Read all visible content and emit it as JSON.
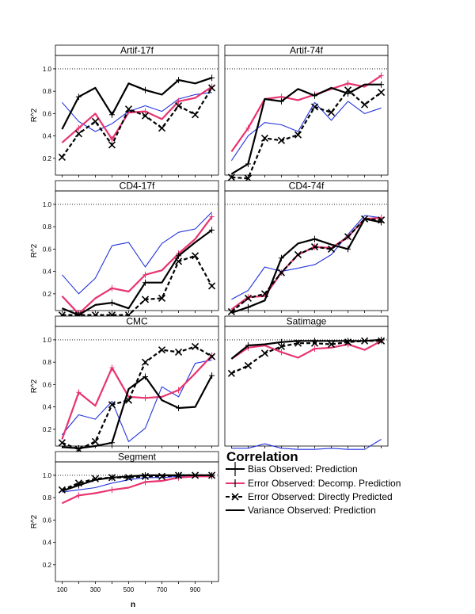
{
  "chart_data": {
    "type": "line",
    "xlabel": "n",
    "ylabel": "R^2",
    "x": [
      100,
      200,
      300,
      400,
      500,
      600,
      700,
      800,
      900,
      1000
    ],
    "x_ticks": [
      "100",
      "300",
      "500",
      "700",
      "900"
    ],
    "y_ticks": [
      "0.2",
      "0.4",
      "0.6",
      "0.8",
      "1.0"
    ],
    "ylim": [
      0.05,
      1.12
    ],
    "reference_line": 1.0,
    "colors": {
      "bias": "#000000",
      "decomp": "#e8336f",
      "direct": "#000000",
      "variance": "#2233dd"
    },
    "legend": {
      "title": "Correlation",
      "items": [
        "Bias Observed: Prediction",
        "Error  Observed: Decomp. Prediction",
        "Error  Observed: Directly Predicted",
        "Variance  Observed: Prediction"
      ]
    },
    "panels": [
      {
        "title": "Artif-17f",
        "series": [
          {
            "name": "Bias",
            "values": [
              0.46,
              0.75,
              0.83,
              0.59,
              0.87,
              0.81,
              0.77,
              0.9,
              0.87,
              0.92
            ]
          },
          {
            "name": "Error Decomp",
            "values": [
              0.34,
              0.47,
              0.6,
              0.37,
              0.61,
              0.62,
              0.55,
              0.71,
              0.74,
              0.84
            ]
          },
          {
            "name": "Error Direct",
            "values": [
              0.21,
              0.42,
              0.53,
              0.32,
              0.64,
              0.58,
              0.47,
              0.67,
              0.59,
              0.83
            ]
          },
          {
            "name": "Variance",
            "values": [
              0.7,
              0.53,
              0.44,
              0.51,
              0.62,
              0.67,
              0.62,
              0.73,
              0.77,
              0.79
            ]
          }
        ]
      },
      {
        "title": "Artif-74f",
        "series": [
          {
            "name": "Bias",
            "values": [
              0.06,
              0.15,
              0.73,
              0.71,
              0.82,
              0.76,
              0.83,
              0.78,
              0.86,
              0.86
            ]
          },
          {
            "name": "Error Decomp",
            "values": [
              0.26,
              0.47,
              0.73,
              0.75,
              0.72,
              0.77,
              0.82,
              0.87,
              0.84,
              0.94
            ]
          },
          {
            "name": "Error Direct",
            "values": [
              0.03,
              0.02,
              0.38,
              0.36,
              0.41,
              0.66,
              0.61,
              0.81,
              0.68,
              0.79
            ]
          },
          {
            "name": "Variance",
            "values": [
              0.18,
              0.4,
              0.52,
              0.5,
              0.44,
              0.7,
              0.54,
              0.71,
              0.6,
              0.65
            ]
          }
        ]
      },
      {
        "title": "CD4-17f",
        "series": [
          {
            "name": "Bias",
            "values": [
              0.07,
              0.01,
              0.1,
              0.12,
              0.07,
              0.3,
              0.3,
              0.54,
              0.66,
              0.77
            ]
          },
          {
            "name": "Error Decomp",
            "values": [
              0.18,
              0.02,
              0.16,
              0.25,
              0.22,
              0.37,
              0.41,
              0.56,
              0.69,
              0.89
            ]
          },
          {
            "name": "Error Direct",
            "values": [
              0.01,
              0.01,
              0.01,
              0.01,
              0.01,
              0.15,
              0.16,
              0.49,
              0.54,
              0.27
            ]
          },
          {
            "name": "Variance",
            "values": [
              0.37,
              0.2,
              0.34,
              0.63,
              0.66,
              0.44,
              0.65,
              0.75,
              0.78,
              0.93
            ]
          }
        ]
      },
      {
        "title": "CD4-74f",
        "series": [
          {
            "name": "Bias",
            "values": [
              0.03,
              0.08,
              0.14,
              0.52,
              0.65,
              0.69,
              0.64,
              0.6,
              0.87,
              0.84
            ]
          },
          {
            "name": "Error Decomp",
            "values": [
              0.06,
              0.17,
              0.18,
              0.39,
              0.55,
              0.62,
              0.61,
              0.71,
              0.87,
              0.88
            ]
          },
          {
            "name": "Error Direct",
            "values": [
              0.04,
              0.16,
              0.2,
              0.39,
              0.55,
              0.62,
              0.6,
              0.71,
              0.87,
              0.86
            ]
          },
          {
            "name": "Variance",
            "values": [
              0.15,
              0.23,
              0.44,
              0.4,
              0.43,
              0.46,
              0.55,
              0.73,
              0.9,
              0.88
            ]
          }
        ]
      },
      {
        "title": "CMC",
        "series": [
          {
            "name": "Bias",
            "values": [
              0.04,
              0.03,
              0.05,
              0.08,
              0.56,
              0.67,
              0.46,
              0.39,
              0.4,
              0.68
            ]
          },
          {
            "name": "Error Decomp",
            "values": [
              0.11,
              0.53,
              0.41,
              0.75,
              0.49,
              0.48,
              0.49,
              0.55,
              0.7,
              0.86
            ]
          },
          {
            "name": "Error Direct",
            "values": [
              0.08,
              0.02,
              0.09,
              0.42,
              0.46,
              0.8,
              0.91,
              0.89,
              0.94,
              0.85
            ]
          },
          {
            "name": "Variance",
            "values": [
              0.15,
              0.33,
              0.29,
              0.45,
              0.09,
              0.21,
              0.58,
              0.49,
              0.79,
              0.82
            ]
          }
        ]
      },
      {
        "title": "Satimage",
        "series": [
          {
            "name": "Bias",
            "values": [
              0.83,
              0.95,
              0.96,
              0.98,
              0.99,
              0.99,
              0.99,
              0.99,
              0.99,
              1.0
            ]
          },
          {
            "name": "Error Decomp",
            "values": [
              0.83,
              0.93,
              0.95,
              0.89,
              0.84,
              0.92,
              0.93,
              0.96,
              0.91,
              0.99
            ]
          },
          {
            "name": "Error Direct",
            "values": [
              0.7,
              0.77,
              0.88,
              0.94,
              0.97,
              0.97,
              0.96,
              0.98,
              0.99,
              0.99
            ]
          },
          {
            "name": "Variance",
            "values": [
              0.03,
              0.03,
              0.07,
              0.03,
              0.02,
              0.02,
              0.03,
              0.02,
              0.02,
              0.11
            ]
          }
        ]
      },
      {
        "title": "Segment",
        "series": [
          {
            "name": "Bias",
            "values": [
              0.86,
              0.91,
              0.96,
              0.98,
              0.99,
              1.0,
              1.0,
              1.0,
              1.0,
              1.0
            ]
          },
          {
            "name": "Error Decomp",
            "values": [
              0.75,
              0.82,
              0.84,
              0.87,
              0.89,
              0.94,
              0.95,
              0.98,
              0.99,
              0.99
            ]
          },
          {
            "name": "Error Direct",
            "values": [
              0.87,
              0.93,
              0.97,
              0.98,
              0.98,
              0.99,
              0.99,
              1.0,
              1.0,
              1.0
            ]
          },
          {
            "name": "Variance",
            "values": [
              0.85,
              0.87,
              0.89,
              0.93,
              0.96,
              0.98,
              0.98,
              0.99,
              0.99,
              0.99
            ]
          }
        ]
      }
    ]
  }
}
